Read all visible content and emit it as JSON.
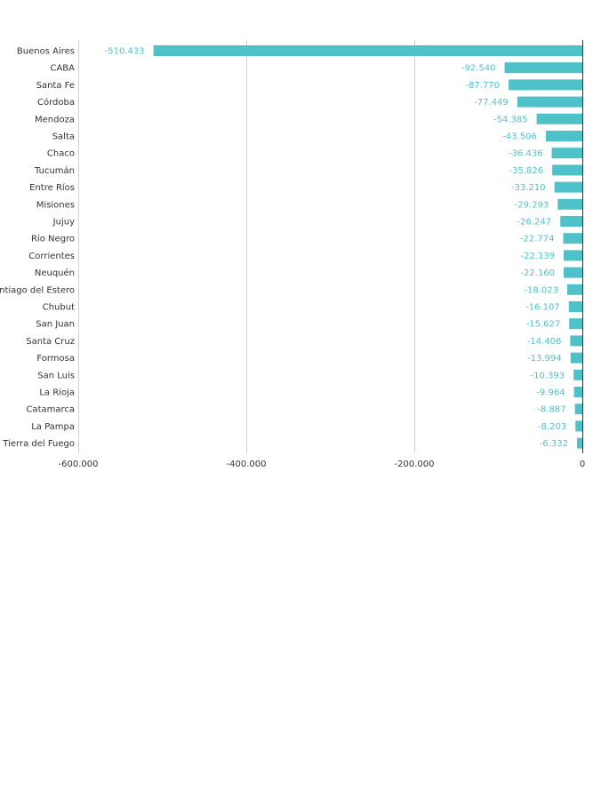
{
  "chart_data": {
    "type": "bar",
    "orientation": "horizontal",
    "title": "",
    "xlabel": "",
    "ylabel": "",
    "xlim": [
      -600000,
      0
    ],
    "grid": true,
    "bar_color": "#4fc1c9",
    "label_color": "#4fc1c9",
    "categories": [
      "Buenos Aires",
      "CABA",
      "Santa Fe",
      "Córdoba",
      "Mendoza",
      "Salta",
      "Chaco",
      "Tucumán",
      "Entre Ríos",
      "Misiones",
      "Jujuy",
      "Río Negro",
      "Corrientes",
      "Neuquén",
      "Santiago del Estero",
      "Chubut",
      "San Juan",
      "Santa Cruz",
      "Formosa",
      "San Luis",
      "La Rioja",
      "Catamarca",
      "La Pampa",
      "Tierra del Fuego"
    ],
    "values": [
      -510433,
      -92540,
      -87770,
      -77449,
      -54385,
      -43506,
      -36436,
      -35826,
      -33210,
      -29293,
      -26247,
      -22774,
      -22139,
      -22160,
      -18023,
      -16107,
      -15627,
      -14406,
      -13994,
      -10393,
      -9964,
      -8887,
      -8203,
      -6332
    ],
    "value_labels": [
      "-510.433",
      "-92.540",
      "-87.770",
      "-77.449",
      "-54.385",
      "-43.506",
      "-36.436",
      "-35.826",
      "-33.210",
      "-29.293",
      "-26.247",
      "-22.774",
      "-22.139",
      "-22.160",
      "-18.023",
      "-16.107",
      "-15.627",
      "-14.406",
      "-13.994",
      "-10.393",
      "-9.964",
      "-8.887",
      "-8.203",
      "-6.332"
    ],
    "x_ticks": [
      -600000,
      -400000,
      -200000,
      0
    ],
    "x_tick_labels": [
      "-600.000",
      "-400.000",
      "-200.000",
      "0"
    ]
  }
}
